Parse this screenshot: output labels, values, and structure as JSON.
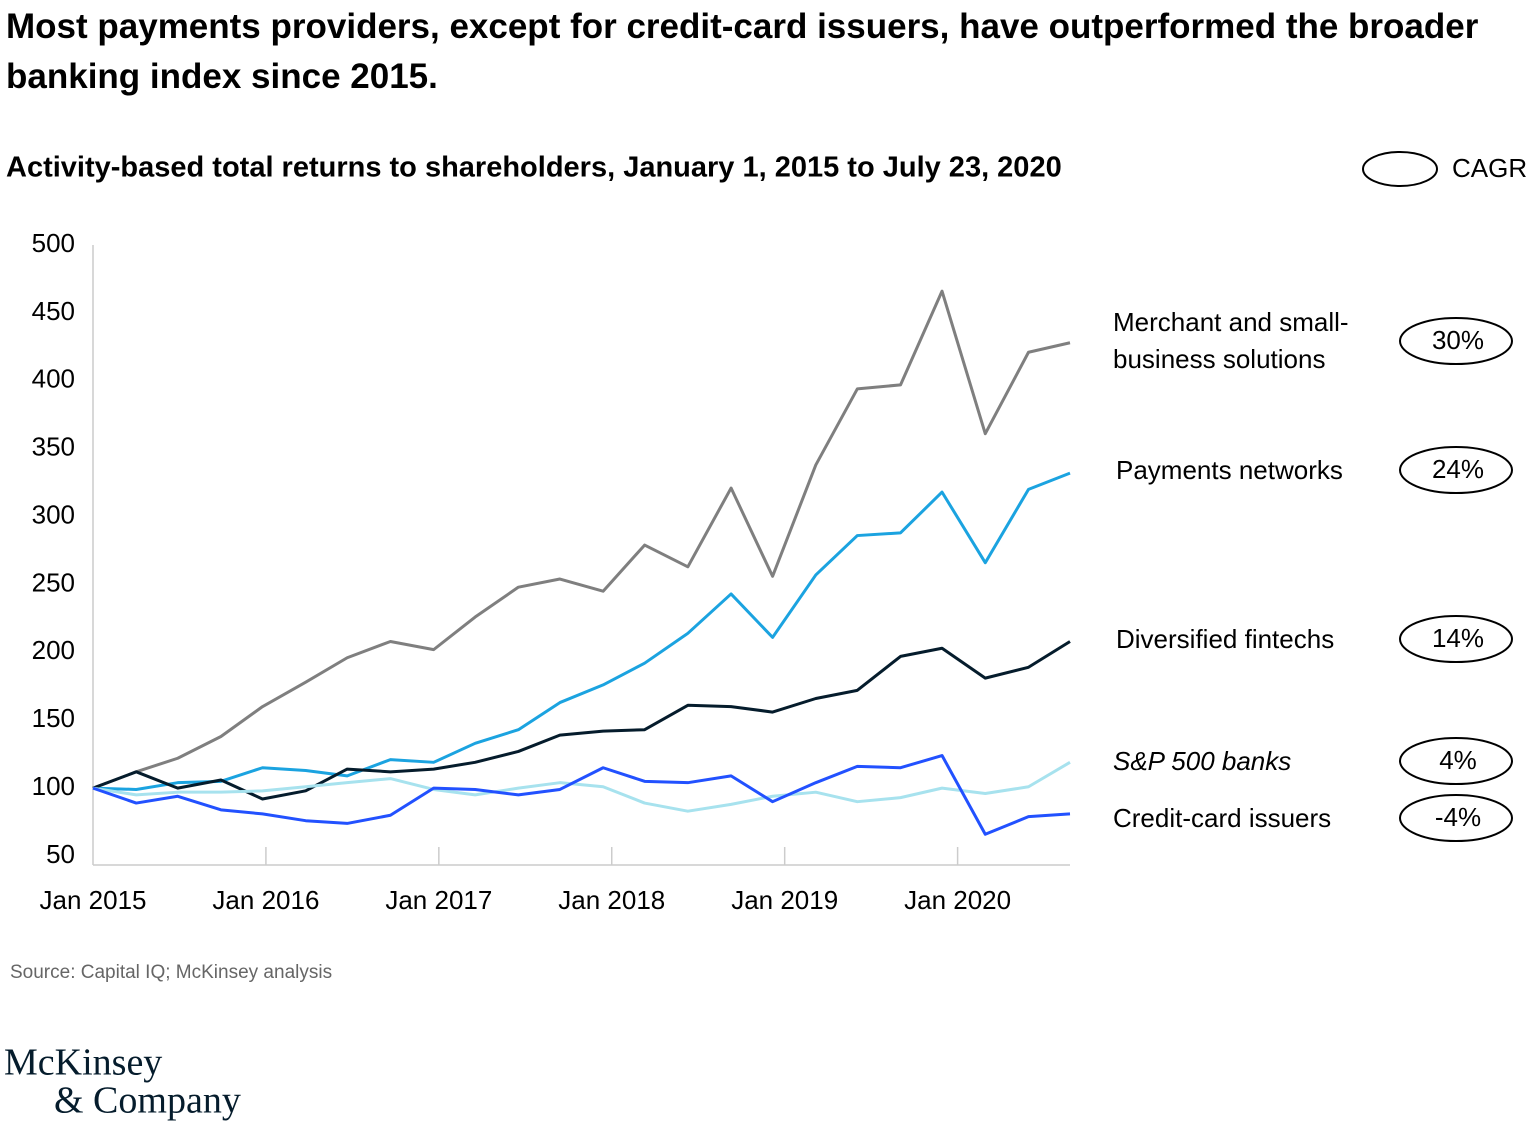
{
  "chart_data": {
    "type": "line",
    "title": "Most payments providers, except for credit-card issuers, have outperformed the broader banking index since 2015.",
    "subtitle": "Activity-based total returns to shareholders, January 1, 2015  to July 23, 2020",
    "legend_label": "CAGR",
    "source": "Source: Capital IQ; McKinsey analysis",
    "logo": [
      "McKinsey",
      "& Company"
    ],
    "x": [
      2015,
      2015.25,
      2015.49,
      2015.74,
      2015.98,
      2016.23,
      2016.47,
      2016.72,
      2016.97,
      2017.21,
      2017.46,
      2017.7,
      2017.95,
      2018.19,
      2018.44,
      2018.69,
      2018.93,
      2019.18,
      2019.42,
      2019.67,
      2019.91,
      2020.16,
      2020.41,
      2020.65
    ],
    "xlim": [
      2015,
      2020.65
    ],
    "xticks": [
      {
        "value": 2015,
        "label": "Jan 2015"
      },
      {
        "value": 2016,
        "label": "Jan 2016"
      },
      {
        "value": 2017,
        "label": "Jan 2017"
      },
      {
        "value": 2018,
        "label": "Jan 2018"
      },
      {
        "value": 2019,
        "label": "Jan 2019"
      },
      {
        "value": 2020,
        "label": "Jan 2020"
      }
    ],
    "ylim": [
      50,
      500
    ],
    "yticks": [
      50,
      100,
      150,
      200,
      250,
      300,
      350,
      400,
      450,
      500
    ],
    "series": [
      {
        "name": "Merchant and small-business solutions",
        "cagr": "30%",
        "color": "#7f7f7f",
        "values": [
          100,
          112,
          122,
          138,
          160,
          178,
          196,
          208,
          202,
          226,
          248,
          254,
          245,
          279,
          263,
          321,
          256,
          338,
          394,
          397,
          466,
          361,
          421,
          428
        ]
      },
      {
        "name": "Payments networks",
        "cagr": "24%",
        "color": "#1ba3e0",
        "values": [
          100,
          99,
          104,
          105,
          115,
          113,
          109,
          121,
          119,
          133,
          143,
          163,
          176,
          192,
          214,
          243,
          211,
          257,
          286,
          288,
          318,
          266,
          320,
          332
        ]
      },
      {
        "name": "Diversified fintechs",
        "cagr": "14%",
        "color": "#051c2c",
        "values": [
          100,
          112,
          100,
          106,
          92,
          98,
          114,
          112,
          114,
          119,
          127,
          139,
          142,
          143,
          161,
          160,
          156,
          166,
          172,
          197,
          203,
          181,
          189,
          208
        ]
      },
      {
        "name": "S&P 500 banks",
        "cagr": "4%",
        "color": "#a7e2ee",
        "values": [
          100,
          95,
          97,
          97,
          98,
          101,
          104,
          107,
          99,
          95,
          100,
          104,
          101,
          89,
          83,
          88,
          94,
          97,
          90,
          93,
          100,
          96,
          101,
          119
        ]
      },
      {
        "name": "Credit-card issuers",
        "cagr": "-4%",
        "color": "#2251ff",
        "values": [
          100,
          89,
          94,
          84,
          81,
          76,
          74,
          80,
          100,
          99,
          95,
          99,
          115,
          105,
          104,
          109,
          90,
          104,
          116,
          115,
          124,
          66,
          79,
          81
        ]
      }
    ]
  }
}
